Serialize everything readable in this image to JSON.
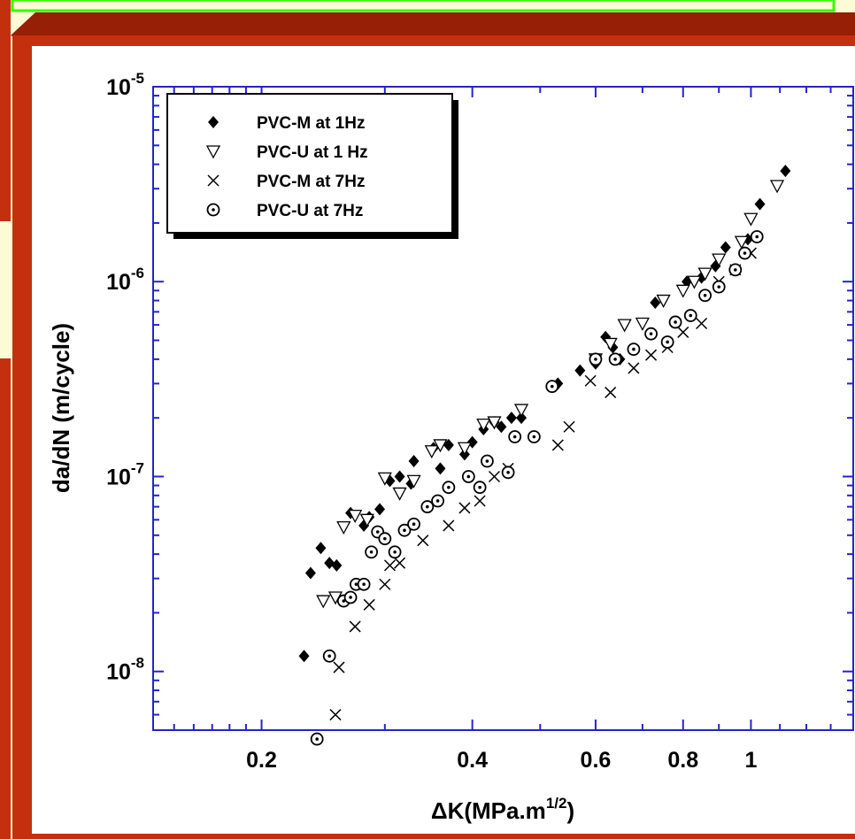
{
  "colors": {
    "background": "#fdfbd6",
    "frame_red": "#c4300e",
    "frame_dark": "#961f06",
    "top_bar_green": "#33ff00",
    "plot_border": "#2323cf",
    "ink": "#000000"
  },
  "chart_data": {
    "type": "scatter",
    "xlabel": "ΔK(MPa.m",
    "xlabel_sup": "1/2",
    "xlabel_end": ")",
    "ylabel": "da/dN (m/cycle)",
    "xscale": "log",
    "yscale": "log",
    "xlim": [
      0.14,
      1.4
    ],
    "ylim": [
      5e-09,
      1e-05
    ],
    "xticks": [
      {
        "value": 0.2,
        "label": "0.2"
      },
      {
        "value": 0.4,
        "label": "0.4"
      },
      {
        "value": 0.6,
        "label": "0.6"
      },
      {
        "value": 0.8,
        "label": "0.8"
      },
      {
        "value": 1,
        "label": "1"
      }
    ],
    "yticks": [
      {
        "value": 1e-05,
        "base": "10",
        "exp": "-5"
      },
      {
        "value": 1e-06,
        "base": "10",
        "exp": "-6"
      },
      {
        "value": 1e-07,
        "base": "10",
        "exp": "-7"
      },
      {
        "value": 1e-08,
        "base": "10",
        "exp": "-8"
      }
    ],
    "grid": false,
    "legend_position": "top-left",
    "series": [
      {
        "name": "PVC-M at 1Hz",
        "marker": "filled-diamond",
        "points": [
          [
            0.23,
            1.2e-08
          ],
          [
            0.235,
            3.2e-08
          ],
          [
            0.243,
            4.3e-08
          ],
          [
            0.25,
            3.6e-08
          ],
          [
            0.256,
            3.5e-08
          ],
          [
            0.268,
            6.5e-08
          ],
          [
            0.28,
            5.6e-08
          ],
          [
            0.285,
            6.2e-08
          ],
          [
            0.295,
            6.8e-08
          ],
          [
            0.305,
            9.5e-08
          ],
          [
            0.315,
            1e-07
          ],
          [
            0.327,
            9.2e-08
          ],
          [
            0.33,
            1.2e-07
          ],
          [
            0.352,
            1.4e-07
          ],
          [
            0.36,
            1.1e-07
          ],
          [
            0.37,
            1.45e-07
          ],
          [
            0.39,
            1.3e-07
          ],
          [
            0.4,
            1.5e-07
          ],
          [
            0.415,
            1.75e-07
          ],
          [
            0.43,
            1.9e-07
          ],
          [
            0.44,
            1.8e-07
          ],
          [
            0.455,
            2e-07
          ],
          [
            0.47,
            2e-07
          ],
          [
            0.53,
            3e-07
          ],
          [
            0.57,
            3.5e-07
          ],
          [
            0.6,
            3.8e-07
          ],
          [
            0.62,
            5.2e-07
          ],
          [
            0.635,
            4.6e-07
          ],
          [
            0.65,
            4e-07
          ],
          [
            0.73,
            7.8e-07
          ],
          [
            0.81,
            1e-06
          ],
          [
            0.85,
            1.05e-06
          ],
          [
            0.89,
            1.2e-06
          ],
          [
            0.92,
            1.5e-06
          ],
          [
            0.99,
            1.65e-06
          ],
          [
            1.03,
            2.5e-06
          ],
          [
            1.12,
            3.7e-06
          ]
        ]
      },
      {
        "name": "PVC-U at 1 Hz",
        "marker": "open-triangle-down",
        "points": [
          [
            0.245,
            2.3e-08
          ],
          [
            0.255,
            2.4e-08
          ],
          [
            0.262,
            5.5e-08
          ],
          [
            0.272,
            6.3e-08
          ],
          [
            0.283,
            6e-08
          ],
          [
            0.3,
            9.8e-08
          ],
          [
            0.315,
            8.2e-08
          ],
          [
            0.33,
            9.5e-08
          ],
          [
            0.35,
            1.35e-07
          ],
          [
            0.36,
            1.45e-07
          ],
          [
            0.39,
            1.4e-07
          ],
          [
            0.415,
            1.85e-07
          ],
          [
            0.43,
            1.9e-07
          ],
          [
            0.47,
            2.2e-07
          ],
          [
            0.6,
            4e-07
          ],
          [
            0.63,
            4.8e-07
          ],
          [
            0.66,
            6e-07
          ],
          [
            0.7,
            6.1e-07
          ],
          [
            0.75,
            8e-07
          ],
          [
            0.8,
            9e-07
          ],
          [
            0.83,
            1e-06
          ],
          [
            0.86,
            1.1e-06
          ],
          [
            0.9,
            1.3e-06
          ],
          [
            0.97,
            1.6e-06
          ],
          [
            1,
            2.1e-06
          ],
          [
            1.09,
            3.1e-06
          ]
        ]
      },
      {
        "name": "PVC-M at 7Hz",
        "marker": "x",
        "points": [
          [
            0.255,
            6e-09
          ],
          [
            0.258,
            1.05e-08
          ],
          [
            0.272,
            1.7e-08
          ],
          [
            0.285,
            2.2e-08
          ],
          [
            0.3,
            2.8e-08
          ],
          [
            0.305,
            3.5e-08
          ],
          [
            0.315,
            3.6e-08
          ],
          [
            0.34,
            4.7e-08
          ],
          [
            0.37,
            5.6e-08
          ],
          [
            0.39,
            6.9e-08
          ],
          [
            0.41,
            7.5e-08
          ],
          [
            0.43,
            1e-07
          ],
          [
            0.45,
            1.1e-07
          ],
          [
            0.53,
            1.45e-07
          ],
          [
            0.55,
            1.8e-07
          ],
          [
            0.59,
            3.1e-07
          ],
          [
            0.63,
            2.7e-07
          ],
          [
            0.68,
            3.6e-07
          ],
          [
            0.72,
            4.2e-07
          ],
          [
            0.76,
            4.6e-07
          ],
          [
            0.8,
            5.5e-07
          ],
          [
            0.85,
            6.1e-07
          ],
          [
            0.9,
            1e-06
          ],
          [
            0.95,
            1.15e-06
          ],
          [
            1,
            1.4e-06
          ]
        ]
      },
      {
        "name": "PVC-U at 7Hz",
        "marker": "dotted-circle",
        "points": [
          [
            0.24,
            4.5e-09
          ],
          [
            0.25,
            1.2e-08
          ],
          [
            0.262,
            2.3e-08
          ],
          [
            0.268,
            2.4e-08
          ],
          [
            0.273,
            2.8e-08
          ],
          [
            0.28,
            2.8e-08
          ],
          [
            0.287,
            4.1e-08
          ],
          [
            0.293,
            5.2e-08
          ],
          [
            0.3,
            4.8e-08
          ],
          [
            0.31,
            4.1e-08
          ],
          [
            0.32,
            5.3e-08
          ],
          [
            0.33,
            5.7e-08
          ],
          [
            0.345,
            7e-08
          ],
          [
            0.357,
            7.5e-08
          ],
          [
            0.37,
            8.8e-08
          ],
          [
            0.395,
            1e-07
          ],
          [
            0.41,
            8.8e-08
          ],
          [
            0.42,
            1.2e-07
          ],
          [
            0.45,
            1.05e-07
          ],
          [
            0.46,
            1.6e-07
          ],
          [
            0.49,
            1.6e-07
          ],
          [
            0.52,
            2.9e-07
          ],
          [
            0.6,
            4e-07
          ],
          [
            0.64,
            4e-07
          ],
          [
            0.68,
            4.5e-07
          ],
          [
            0.72,
            5.4e-07
          ],
          [
            0.76,
            4.9e-07
          ],
          [
            0.78,
            6.2e-07
          ],
          [
            0.82,
            6.7e-07
          ],
          [
            0.86,
            8.5e-07
          ],
          [
            0.9,
            9.4e-07
          ],
          [
            0.95,
            1.15e-06
          ],
          [
            0.98,
            1.4e-06
          ],
          [
            1.02,
            1.7e-06
          ]
        ]
      }
    ]
  }
}
